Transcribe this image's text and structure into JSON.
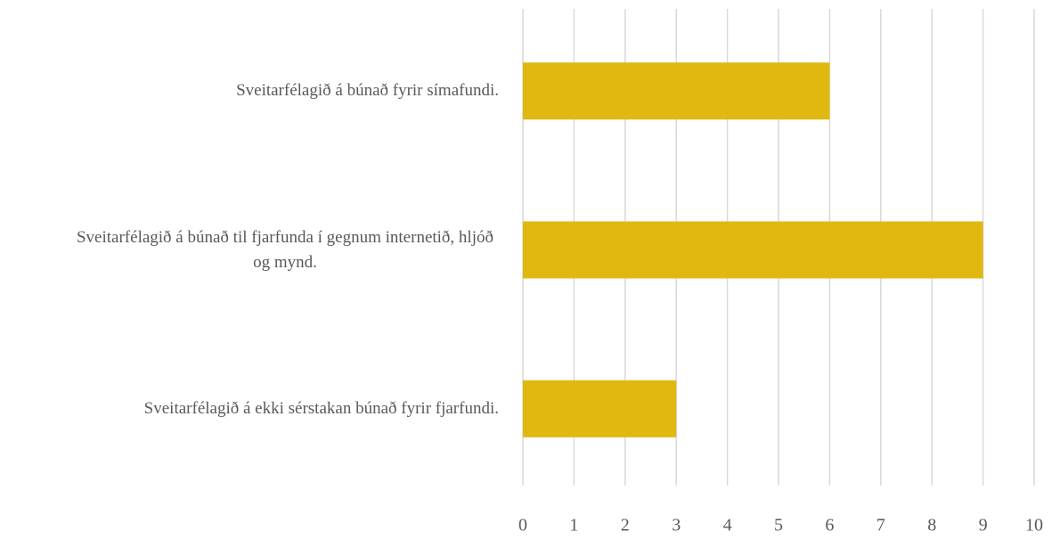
{
  "chart_data": {
    "type": "bar",
    "orientation": "horizontal",
    "categories": [
      "Sveitarfélagið á búnað fyrir símafundi.",
      "Sveitarfélagið á búnað til fjarfunda í gegnum internetið, hljóð og mynd.",
      "Sveitarfélagið á ekki sérstakan búnað fyrir fjarfundi."
    ],
    "values": [
      6,
      9,
      3
    ],
    "color": "#e0b80f",
    "xlim": [
      0,
      10
    ],
    "xticks": [
      0,
      1,
      2,
      3,
      4,
      5,
      6,
      7,
      8,
      9,
      10
    ],
    "grid": true
  }
}
